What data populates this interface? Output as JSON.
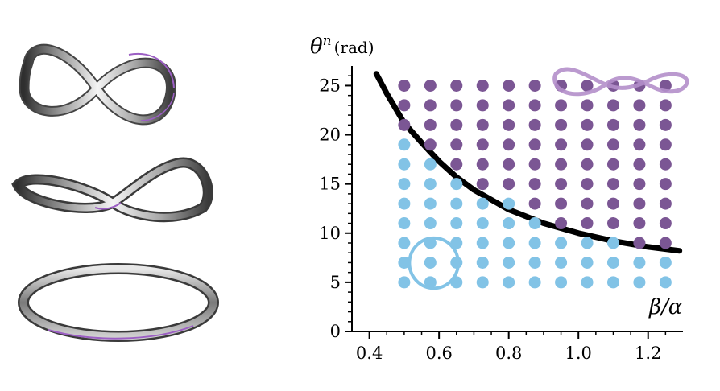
{
  "chart_data": {
    "type": "scatter",
    "xlabel": "β/α",
    "ylabel_main": "θ",
    "ylabel_sup": "n",
    "ylabel_unit": "(rad)",
    "xlim": [
      0.35,
      1.3
    ],
    "ylim": [
      0,
      27
    ],
    "xticks": [
      0.4,
      0.6,
      0.8,
      1.0,
      1.2
    ],
    "xtick_labels": [
      "0.4",
      "0.6",
      "0.8",
      "1.0",
      "1.2"
    ],
    "yticks": [
      0,
      5,
      10,
      15,
      20,
      25
    ],
    "ytick_labels": [
      "0",
      "5",
      "10",
      "15",
      "20",
      "25"
    ],
    "x_grid": [
      0.5,
      0.575,
      0.65,
      0.725,
      0.8,
      0.875,
      0.95,
      1.025,
      1.1,
      1.175,
      1.25
    ],
    "y_grid": [
      5,
      7,
      9,
      11,
      13,
      15,
      17,
      19,
      21,
      23,
      25
    ],
    "boundary_curve": {
      "color": "#000000",
      "points": [
        [
          0.42,
          26.2
        ],
        [
          0.45,
          24.2
        ],
        [
          0.5,
          21.2
        ],
        [
          0.55,
          19.2
        ],
        [
          0.6,
          17.3
        ],
        [
          0.65,
          15.7
        ],
        [
          0.7,
          14.4
        ],
        [
          0.8,
          12.4
        ],
        [
          0.9,
          11.0
        ],
        [
          1.0,
          10.0
        ],
        [
          1.1,
          9.2
        ],
        [
          1.2,
          8.6
        ],
        [
          1.29,
          8.2
        ]
      ]
    },
    "series": [
      {
        "color": "#7b5694",
        "points": [
          [
            0.5,
            25
          ],
          [
            0.575,
            25
          ],
          [
            0.65,
            25
          ],
          [
            0.725,
            25
          ],
          [
            0.8,
            25
          ],
          [
            0.875,
            25
          ],
          [
            0.95,
            25
          ],
          [
            1.025,
            25
          ],
          [
            1.1,
            25
          ],
          [
            1.175,
            25
          ],
          [
            1.25,
            25
          ],
          [
            0.5,
            23
          ],
          [
            0.575,
            23
          ],
          [
            0.65,
            23
          ],
          [
            0.725,
            23
          ],
          [
            0.8,
            23
          ],
          [
            0.875,
            23
          ],
          [
            0.95,
            23
          ],
          [
            1.025,
            23
          ],
          [
            1.1,
            23
          ],
          [
            1.175,
            23
          ],
          [
            1.25,
            23
          ],
          [
            0.5,
            21
          ],
          [
            0.575,
            21
          ],
          [
            0.65,
            21
          ],
          [
            0.725,
            21
          ],
          [
            0.8,
            21
          ],
          [
            0.875,
            21
          ],
          [
            0.95,
            21
          ],
          [
            1.025,
            21
          ],
          [
            1.1,
            21
          ],
          [
            1.175,
            21
          ],
          [
            1.25,
            21
          ],
          [
            0.575,
            19
          ],
          [
            0.65,
            19
          ],
          [
            0.725,
            19
          ],
          [
            0.8,
            19
          ],
          [
            0.875,
            19
          ],
          [
            0.95,
            19
          ],
          [
            1.025,
            19
          ],
          [
            1.1,
            19
          ],
          [
            1.175,
            19
          ],
          [
            1.25,
            19
          ],
          [
            0.65,
            17
          ],
          [
            0.725,
            17
          ],
          [
            0.8,
            17
          ],
          [
            0.875,
            17
          ],
          [
            0.95,
            17
          ],
          [
            1.025,
            17
          ],
          [
            1.1,
            17
          ],
          [
            1.175,
            17
          ],
          [
            1.25,
            17
          ],
          [
            0.725,
            15
          ],
          [
            0.8,
            15
          ],
          [
            0.875,
            15
          ],
          [
            0.95,
            15
          ],
          [
            1.025,
            15
          ],
          [
            1.1,
            15
          ],
          [
            1.175,
            15
          ],
          [
            1.25,
            15
          ],
          [
            0.875,
            13
          ],
          [
            0.95,
            13
          ],
          [
            1.025,
            13
          ],
          [
            1.1,
            13
          ],
          [
            1.175,
            13
          ],
          [
            1.25,
            13
          ],
          [
            0.95,
            11
          ],
          [
            1.025,
            11
          ],
          [
            1.1,
            11
          ],
          [
            1.175,
            11
          ],
          [
            1.25,
            11
          ],
          [
            1.175,
            9
          ],
          [
            1.25,
            9
          ]
        ]
      },
      {
        "color": "#82c3e6",
        "points": [
          [
            0.5,
            5
          ],
          [
            0.575,
            5
          ],
          [
            0.65,
            5
          ],
          [
            0.725,
            5
          ],
          [
            0.8,
            5
          ],
          [
            0.875,
            5
          ],
          [
            0.95,
            5
          ],
          [
            1.025,
            5
          ],
          [
            1.1,
            5
          ],
          [
            1.175,
            5
          ],
          [
            1.25,
            5
          ],
          [
            0.5,
            7
          ],
          [
            0.575,
            7
          ],
          [
            0.65,
            7
          ],
          [
            0.725,
            7
          ],
          [
            0.8,
            7
          ],
          [
            0.875,
            7
          ],
          [
            0.95,
            7
          ],
          [
            1.025,
            7
          ],
          [
            1.1,
            7
          ],
          [
            1.175,
            7
          ],
          [
            1.25,
            7
          ],
          [
            0.5,
            9
          ],
          [
            0.575,
            9
          ],
          [
            0.65,
            9
          ],
          [
            0.725,
            9
          ],
          [
            0.8,
            9
          ],
          [
            0.875,
            9
          ],
          [
            0.95,
            9
          ],
          [
            1.025,
            9
          ],
          [
            1.1,
            9
          ],
          [
            0.5,
            11
          ],
          [
            0.575,
            11
          ],
          [
            0.65,
            11
          ],
          [
            0.725,
            11
          ],
          [
            0.8,
            11
          ],
          [
            0.875,
            11
          ],
          [
            0.5,
            13
          ],
          [
            0.575,
            13
          ],
          [
            0.65,
            13
          ],
          [
            0.725,
            13
          ],
          [
            0.8,
            13
          ],
          [
            0.5,
            15
          ],
          [
            0.575,
            15
          ],
          [
            0.65,
            15
          ],
          [
            0.5,
            17
          ],
          [
            0.575,
            17
          ],
          [
            0.5,
            19
          ]
        ]
      }
    ],
    "highlight_ellipse": {
      "color": "#82c3e6",
      "center": [
        0.585,
        6.95
      ],
      "radii": [
        0.07,
        2.55
      ]
    },
    "grid": false,
    "legend": "none"
  }
}
